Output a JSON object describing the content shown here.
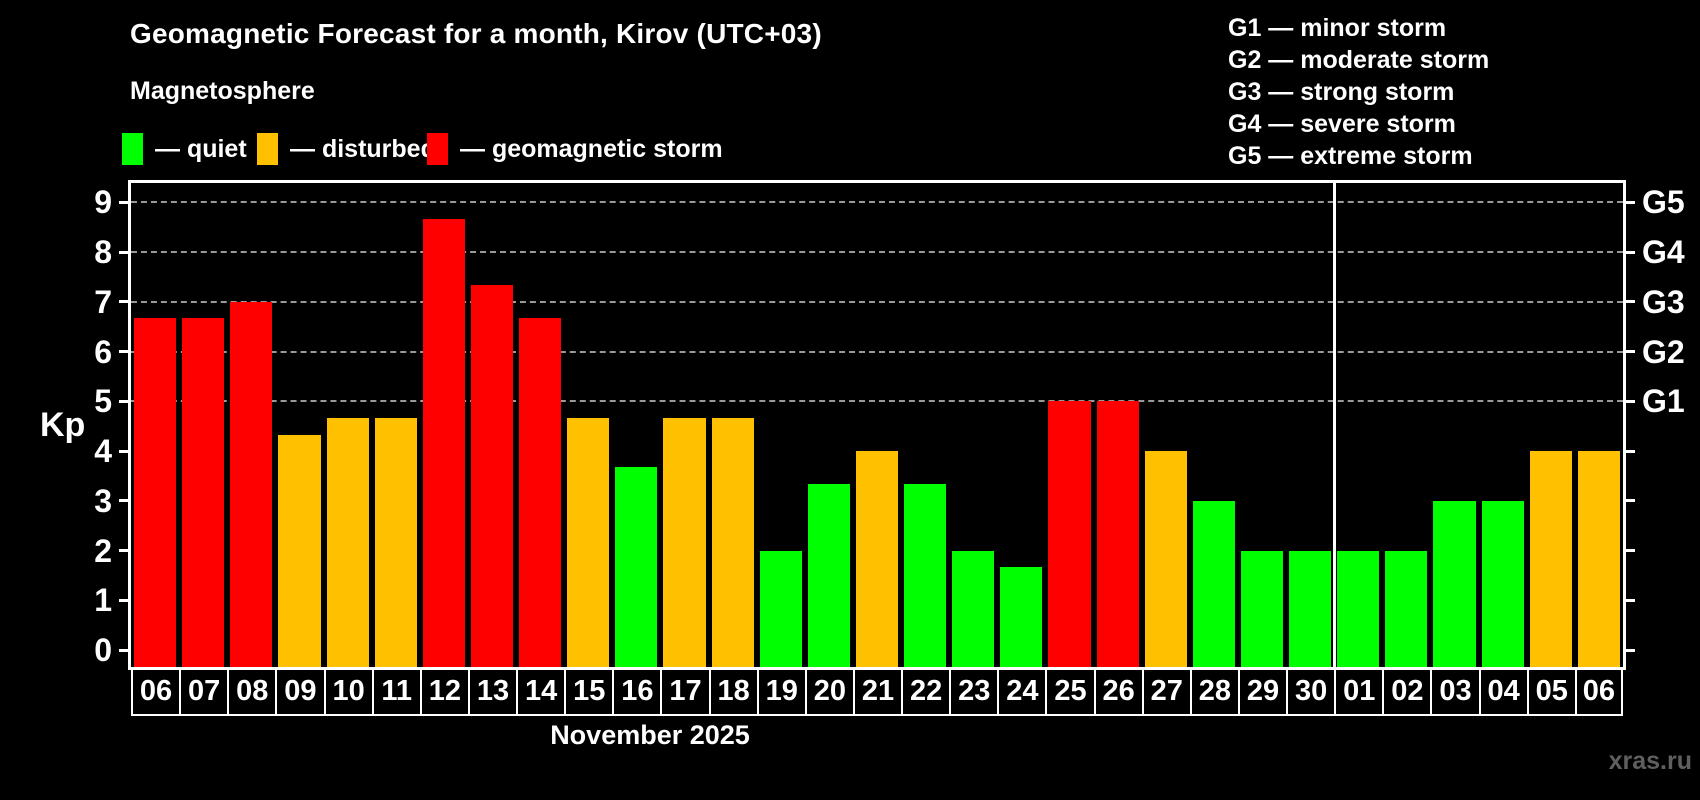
{
  "header": {
    "title": "Geomagnetic Forecast for a month, Kirov (UTC+03)",
    "subtitle": "Magnetosphere"
  },
  "kp_legend": [
    {
      "label": "— quiet",
      "level": "quiet",
      "color": "#00ff00"
    },
    {
      "label": "— disturbed",
      "level": "disturbed",
      "color": "#ffc000"
    },
    {
      "label": "— geomagnetic storm",
      "level": "storm",
      "color": "#ff0000"
    }
  ],
  "storm_legend": [
    "G1 — minor storm",
    "G2 — moderate storm",
    "G3 — strong storm",
    "G4 — severe storm",
    "G5 — extreme storm"
  ],
  "footer": {
    "xlabel": "November 2025",
    "watermark": "xras.ru"
  },
  "chart_data": {
    "type": "bar",
    "title": "Geomagnetic Forecast for a month, Kirov (UTC+03)",
    "xlabel": "November 2025",
    "ylabel": "Kp",
    "ylim": [
      0,
      9
    ],
    "y_ticks": [
      0,
      1,
      2,
      3,
      4,
      5,
      6,
      7,
      8,
      9
    ],
    "gridlines_at": [
      5,
      6,
      7,
      8,
      9
    ],
    "grid": "horizontal dashed at G-storm levels only",
    "legend_position": "top",
    "right_axis": [
      {
        "label": "G1",
        "kp": 5
      },
      {
        "label": "G2",
        "kp": 6
      },
      {
        "label": "G3",
        "kp": 7
      },
      {
        "label": "G4",
        "kp": 8
      },
      {
        "label": "G5",
        "kp": 9
      }
    ],
    "month_divider_index": 25,
    "categories": [
      "06",
      "07",
      "08",
      "09",
      "10",
      "11",
      "12",
      "13",
      "14",
      "15",
      "16",
      "17",
      "18",
      "19",
      "20",
      "21",
      "22",
      "23",
      "24",
      "25",
      "26",
      "27",
      "28",
      "29",
      "30",
      "01",
      "02",
      "03",
      "04",
      "05",
      "06"
    ],
    "values": [
      6.67,
      6.67,
      7,
      4.33,
      4.67,
      4.67,
      8.67,
      7.33,
      6.67,
      4.67,
      3.67,
      4.67,
      4.67,
      2,
      3.33,
      4,
      3.33,
      2,
      1.67,
      5,
      5,
      4,
      3,
      2,
      2,
      2,
      2,
      3,
      3,
      4,
      4
    ],
    "levels": [
      "storm",
      "storm",
      "storm",
      "disturbed",
      "disturbed",
      "disturbed",
      "storm",
      "storm",
      "storm",
      "disturbed",
      "quiet",
      "disturbed",
      "disturbed",
      "quiet",
      "quiet",
      "disturbed",
      "quiet",
      "quiet",
      "quiet",
      "storm",
      "storm",
      "disturbed",
      "quiet",
      "quiet",
      "quiet",
      "quiet",
      "quiet",
      "quiet",
      "quiet",
      "disturbed",
      "disturbed"
    ],
    "level_colors": {
      "quiet": "#00ff00",
      "disturbed": "#ffc000",
      "storm": "#ff0000"
    }
  }
}
